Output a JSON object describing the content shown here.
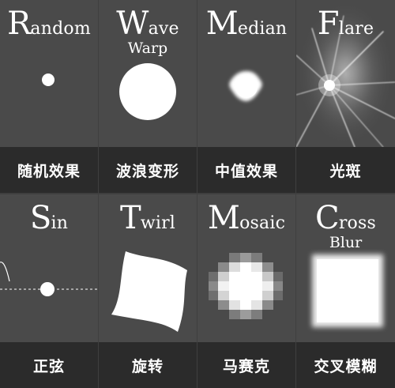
{
  "tiles": [
    {
      "title_initial": "R",
      "title_rest": "andom",
      "subtitle": "",
      "label": "随机效果",
      "icon": "random-dot-icon"
    },
    {
      "title_initial": "W",
      "title_rest": "ave",
      "subtitle": "Warp",
      "label": "波浪变形",
      "icon": "wave-warp-circle-icon"
    },
    {
      "title_initial": "M",
      "title_rest": "edian",
      "subtitle": "",
      "label": "中值效果",
      "icon": "median-blob-icon"
    },
    {
      "title_initial": "F",
      "title_rest": "lare",
      "subtitle": "",
      "label": "光斑",
      "icon": "flare-starburst-icon"
    },
    {
      "title_initial": "S",
      "title_rest": "in",
      "subtitle": "",
      "label": "正弦",
      "icon": "sine-wave-dot-icon"
    },
    {
      "title_initial": "T",
      "title_rest": "wirl",
      "subtitle": "",
      "label": "旋转",
      "icon": "twirl-shape-icon"
    },
    {
      "title_initial": "M",
      "title_rest": "osaic",
      "subtitle": "",
      "label": "马赛克",
      "icon": "mosaic-pixel-icon"
    },
    {
      "title_initial": "C",
      "title_rest": "ross",
      "subtitle": "Blur",
      "label": "交叉模糊",
      "icon": "cross-blur-square-icon"
    }
  ],
  "colors": {
    "tile_bg": "#4a4a4a",
    "label_bg": "#2b2b2b",
    "grid_line": "#3f3f3f",
    "text": "#ffffff"
  }
}
